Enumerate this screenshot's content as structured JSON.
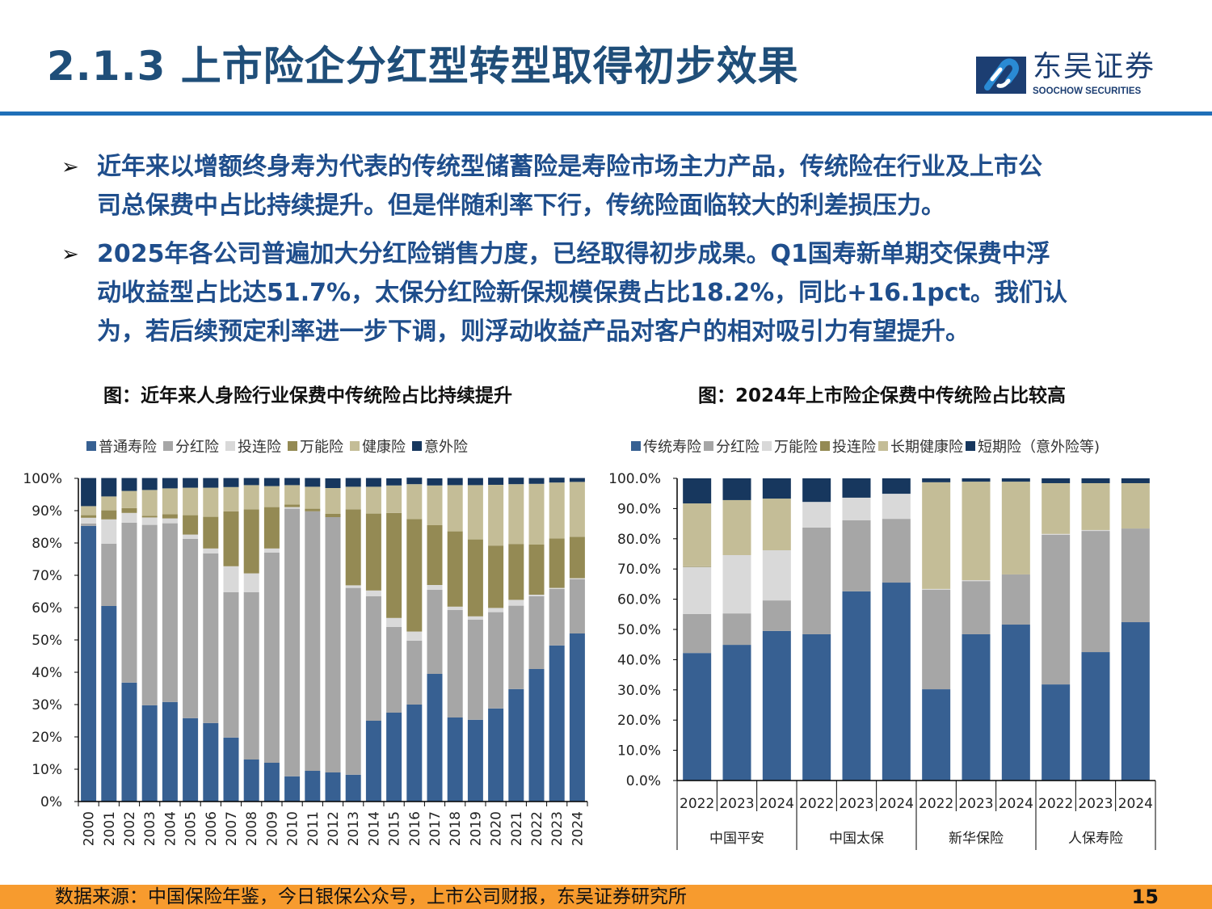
{
  "header": {
    "title": "2.1.3 上市险企分红型转型取得初步效果",
    "logo_cn": "东吴证券",
    "logo_en": "SOOCHOW SECURITIES"
  },
  "bullets": [
    {
      "icon": "arrow-bullet-icon",
      "mark": "➢",
      "lines": [
        "近年来以增额终身寿为代表的传统型储蓄险是寿险市场主力产品，传统险在行业及上市公",
        "司总保费中占比持续提升。但是伴随利率下行，传统险面临较大的利差损压力。"
      ]
    },
    {
      "icon": "arrow-bullet-icon",
      "mark": "➢",
      "lines": [
        "2025年各公司普遍加大分红险销售力度，已经取得初步成果。Q1国寿新单期交保费中浮",
        "动收益型占比达51.7%，太保分红险新保规模保费占比18.2%，同比+16.1pct。我们认",
        "为，若后续预定利率进一步下调，则浮动收益产品对客户的相对吸引力有望提升。"
      ]
    }
  ],
  "colors": {
    "title": "#1f4e79",
    "rule": "#1f6fb8",
    "footer": "#f79b2e"
  },
  "chart_data": [
    {
      "type": "bar",
      "stacked": true,
      "title": "图：近年来人身险行业保费中传统险占比持续提升",
      "ylim": [
        0,
        100
      ],
      "yticks": [
        "0%",
        "10%",
        "20%",
        "30%",
        "40%",
        "50%",
        "60%",
        "70%",
        "80%",
        "90%",
        "100%"
      ],
      "legend_position": "top",
      "grid": false,
      "categories": [
        "2000",
        "2001",
        "2002",
        "2003",
        "2004",
        "2005",
        "2006",
        "2007",
        "2008",
        "2009",
        "2010",
        "2011",
        "2012",
        "2013",
        "2014",
        "2015",
        "2016",
        "2017",
        "2018",
        "2019",
        "2020",
        "2021",
        "2022",
        "2023",
        "2024"
      ],
      "series": [
        {
          "name": "普通寿险",
          "color": "#376092",
          "values": [
            85.3,
            60.5,
            36.8,
            29.8,
            30.8,
            25.8,
            24.3,
            19.8,
            13.0,
            12.0,
            7.8,
            9.5,
            9.0,
            8.3,
            25.0,
            27.5,
            30.0,
            39.5,
            26.0,
            25.3,
            28.8,
            34.8,
            41.0,
            48.3,
            52.0
          ]
        },
        {
          "name": "分红险",
          "color": "#a6a6a6",
          "values": [
            0.7,
            19.3,
            49.5,
            55.8,
            55.3,
            55.5,
            52.5,
            45.0,
            51.8,
            65.0,
            82.8,
            80.3,
            79.0,
            57.8,
            38.5,
            26.5,
            19.8,
            26.0,
            33.3,
            31.0,
            29.8,
            25.8,
            22.5,
            17.5,
            16.8
          ]
        },
        {
          "name": "投连险",
          "color": "#d9d9d9",
          "values": [
            1.8,
            7.5,
            3.0,
            2.3,
            1.5,
            1.3,
            1.5,
            8.0,
            5.8,
            1.3,
            0.5,
            0.0,
            0.0,
            0.8,
            1.8,
            2.8,
            2.8,
            1.5,
            1.0,
            1.0,
            1.3,
            1.8,
            0.5,
            0.3,
            0.3
          ]
        },
        {
          "name": "万能险",
          "color": "#948a54",
          "values": [
            0.8,
            2.8,
            1.5,
            0.5,
            1.3,
            6.0,
            9.8,
            17.0,
            19.8,
            12.8,
            0.8,
            0.8,
            1.0,
            23.5,
            23.8,
            32.5,
            34.8,
            18.5,
            23.3,
            23.8,
            19.3,
            17.3,
            15.5,
            15.3,
            12.8
          ]
        },
        {
          "name": "健康险",
          "color": "#c4bd97",
          "values": [
            2.8,
            4.3,
            5.3,
            8.0,
            8.0,
            8.5,
            9.0,
            7.5,
            7.5,
            6.5,
            6.0,
            6.8,
            8.0,
            7.0,
            8.3,
            8.5,
            10.8,
            12.3,
            14.3,
            16.8,
            18.8,
            18.5,
            18.8,
            17.3,
            17.0
          ]
        },
        {
          "name": "意外险",
          "color": "#17375e",
          "values": [
            8.7,
            5.7,
            4.0,
            3.7,
            3.2,
            3.0,
            3.0,
            2.8,
            2.2,
            2.5,
            2.2,
            2.7,
            3.0,
            2.7,
            2.7,
            2.2,
            2.0,
            2.2,
            2.2,
            2.2,
            2.2,
            2.0,
            1.8,
            1.5,
            1.2
          ]
        }
      ]
    },
    {
      "type": "bar",
      "stacked": true,
      "title": "图：2024年上市险企保费中传统险占比较高",
      "ylim": [
        0,
        100
      ],
      "yticks": [
        "0.0%",
        "10.0%",
        "20.0%",
        "30.0%",
        "40.0%",
        "50.0%",
        "60.0%",
        "70.0%",
        "80.0%",
        "90.0%",
        "100.0%"
      ],
      "legend_position": "top",
      "grid": false,
      "groups": [
        {
          "name": "中国平安",
          "years": [
            "2022",
            "2023",
            "2024"
          ]
        },
        {
          "name": "中国太保",
          "years": [
            "2022",
            "2023",
            "2024"
          ]
        },
        {
          "name": "新华保险",
          "years": [
            "2022",
            "2023",
            "2024"
          ]
        },
        {
          "name": "人保寿险",
          "years": [
            "2022",
            "2023",
            "2024"
          ]
        }
      ],
      "series": [
        {
          "name": "传统寿险",
          "color": "#376092",
          "values": [
            42.2,
            44.9,
            49.5,
            48.4,
            62.6,
            65.5,
            30.2,
            48.4,
            51.6,
            31.8,
            42.5,
            52.4
          ]
        },
        {
          "name": "分红险",
          "color": "#a6a6a6",
          "values": [
            12.9,
            10.4,
            10.1,
            35.3,
            23.5,
            21.1,
            32.9,
            17.6,
            16.6,
            49.5,
            40.1,
            31.0
          ]
        },
        {
          "name": "万能险",
          "color": "#d9d9d9",
          "values": [
            15.6,
            19.3,
            16.6,
            8.5,
            7.5,
            8.3,
            0.3,
            0.3,
            0.0,
            0.3,
            0.3,
            0.0
          ]
        },
        {
          "name": "投连险",
          "color": "#948a54",
          "values": [
            0.2,
            0.0,
            0.0,
            0.0,
            0.0,
            0.0,
            0.0,
            0.0,
            0.0,
            0.0,
            0.0,
            0.0
          ]
        },
        {
          "name": "长期健康险",
          "color": "#c4bd97",
          "values": [
            20.8,
            18.2,
            17.1,
            0.0,
            0.0,
            0.0,
            35.3,
            32.6,
            30.7,
            16.8,
            15.5,
            15.0
          ]
        },
        {
          "name": "短期险（意外险等)",
          "color": "#17375e",
          "values": [
            8.3,
            7.2,
            6.7,
            7.8,
            6.4,
            5.1,
            1.3,
            1.1,
            1.1,
            1.6,
            1.6,
            1.6
          ]
        }
      ]
    }
  ],
  "footer": {
    "source": "数据来源：中国保险年鉴，今日银保公众号，上市公司财报，东吴证券研究所",
    "page": "15"
  }
}
